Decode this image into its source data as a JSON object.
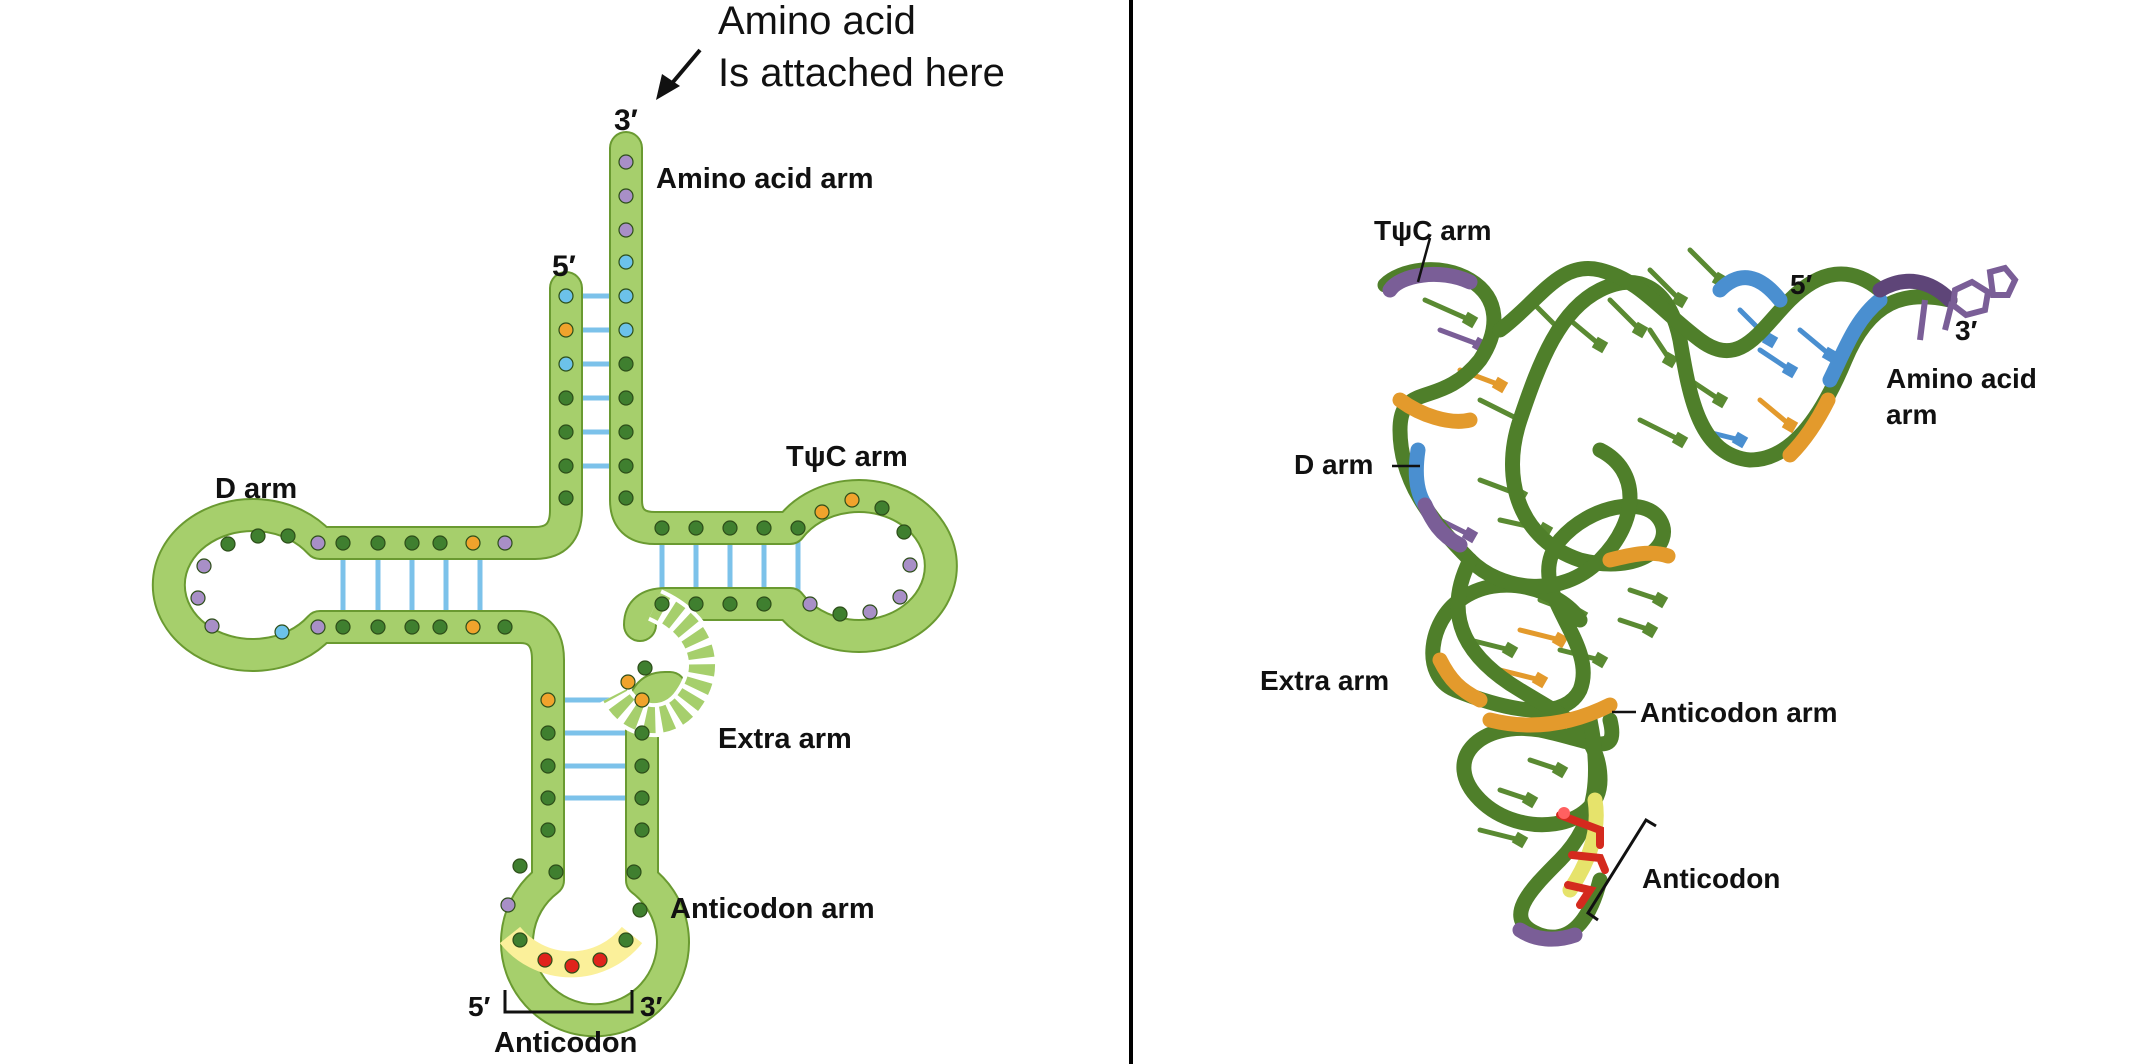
{
  "colors": {
    "backbone": "#a6cf6c",
    "backbone_dark": "#6a9a31",
    "base_green": "#3f7f2f",
    "base_purple": "#a88fc7",
    "base_orange": "#f0a32c",
    "base_blue": "#6cc2ea",
    "base_red": "#e0241c",
    "anticodon_fill": "#fbf09a",
    "pair_line": "#7cc2ea",
    "ribbon_green": "#5a8a32",
    "ribbon_purple": "#7a5e97",
    "ribbon_orange": "#e39a2c",
    "ribbon_blue": "#4a8fd0",
    "ribbon_yellow": "#e6e36b",
    "ribbon_red": "#d42a1e"
  },
  "left_panel": {
    "annotation_line1": "Amino acid",
    "annotation_line2": "Is attached here",
    "three_prime_top": "3′",
    "five_prime_top": "5′",
    "amino_acid_arm": "Amino acid arm",
    "d_arm": "D arm",
    "tpsic_arm": "TψC arm",
    "extra_arm": "Extra arm",
    "anticodon_arm": "Anticodon arm",
    "anticodon_five_prime": "5′",
    "anticodon_three_prime": "3′",
    "anticodon": "Anticodon"
  },
  "right_panel": {
    "tpsic_arm": "TψC arm",
    "five_prime": "5′",
    "three_prime": "3′",
    "amino_acid_arm_line1": "Amino acid",
    "amino_acid_arm_line2": "arm",
    "d_arm": "D arm",
    "extra_arm": "Extra arm",
    "anticodon_arm": "Anticodon arm",
    "anticodon": "Anticodon"
  }
}
